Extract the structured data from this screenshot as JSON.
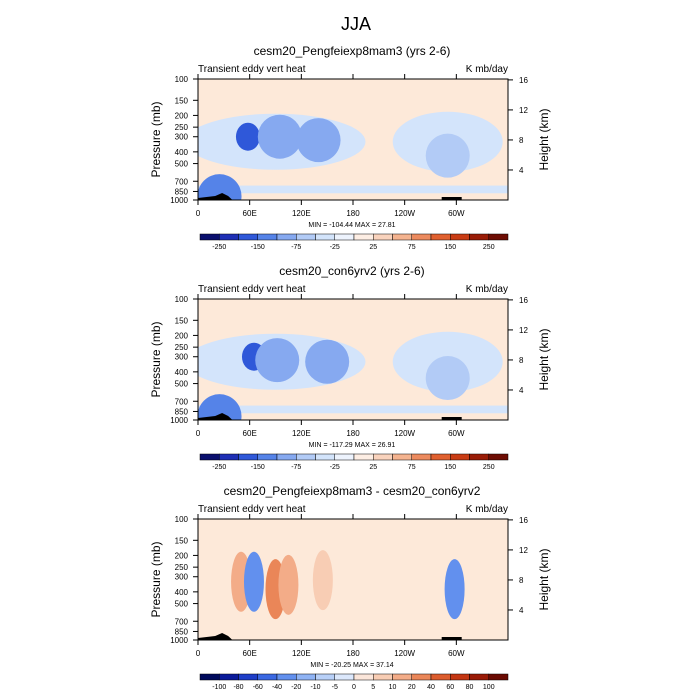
{
  "figure_title": "JJA",
  "chart_data": [
    {
      "type": "heatmap",
      "title": "cesm20_Pengfeiexp8mam3 (yrs 2-6)",
      "left_label": "Transient eddy vert heat",
      "right_label": "K mb/day",
      "xlabel": "",
      "ylabel": "Pressure (mb)",
      "ylabel_right": "Height (km)",
      "x_ticks": [
        "0",
        "60E",
        "120E",
        "180",
        "120W",
        "60W"
      ],
      "y_ticks": [
        "100",
        "150",
        "200",
        "250",
        "300",
        "400",
        "500",
        "700",
        "850",
        "1000"
      ],
      "y2_ticks": [
        "16",
        "12",
        "8",
        "4"
      ],
      "minmax": "MIN = -104.44  MAX =  27.81",
      "colorbar_labels": [
        "-250",
        "-150",
        "-75",
        "-25",
        "25",
        "75",
        "150",
        "250"
      ],
      "xlim": [
        0,
        360
      ],
      "ylim": [
        1000,
        100
      ],
      "features": [
        {
          "lon": 25,
          "p": 930,
          "value": -80
        },
        {
          "lon": 58,
          "p": 300,
          "value": -100
        },
        {
          "lon": 95,
          "p": 300,
          "value": -45
        },
        {
          "lon": 140,
          "p": 320,
          "value": -40
        },
        {
          "lon": 290,
          "p": 430,
          "value": -20
        }
      ]
    },
    {
      "type": "heatmap",
      "title": "cesm20_con6yrv2 (yrs 2-6)",
      "left_label": "Transient eddy vert heat",
      "right_label": "K mb/day",
      "xlabel": "",
      "ylabel": "Pressure (mb)",
      "ylabel_right": "Height (km)",
      "x_ticks": [
        "0",
        "60E",
        "120E",
        "180",
        "120W",
        "60W"
      ],
      "y_ticks": [
        "100",
        "150",
        "200",
        "250",
        "300",
        "400",
        "500",
        "700",
        "850",
        "1000"
      ],
      "y2_ticks": [
        "16",
        "12",
        "8",
        "4"
      ],
      "minmax": "MIN = -117.29  MAX =  26.91",
      "colorbar_labels": [
        "-250",
        "-150",
        "-75",
        "-25",
        "25",
        "75",
        "150",
        "250"
      ],
      "xlim": [
        0,
        360
      ],
      "ylim": [
        1000,
        100
      ],
      "features": [
        {
          "lon": 25,
          "p": 930,
          "value": -80
        },
        {
          "lon": 65,
          "p": 300,
          "value": -115
        },
        {
          "lon": 92,
          "p": 320,
          "value": -45
        },
        {
          "lon": 150,
          "p": 330,
          "value": -35
        },
        {
          "lon": 290,
          "p": 450,
          "value": -20
        }
      ]
    },
    {
      "type": "heatmap",
      "title": "cesm20_Pengfeiexp8mam3 - cesm20_con6yrv2",
      "left_label": "Transient eddy vert heat",
      "right_label": "K mb/day",
      "xlabel": "",
      "ylabel": "Pressure (mb)",
      "ylabel_right": "Height (km)",
      "x_ticks": [
        "0",
        "60E",
        "120E",
        "180",
        "120W",
        "60W"
      ],
      "y_ticks": [
        "100",
        "150",
        "200",
        "250",
        "300",
        "400",
        "500",
        "700",
        "850",
        "1000"
      ],
      "y2_ticks": [
        "16",
        "12",
        "8",
        "4"
      ],
      "minmax": "MIN = -20.25  MAX =  37.14",
      "colorbar_labels": [
        "-100",
        "-80",
        "-60",
        "-40",
        "-20",
        "-10",
        "-5",
        "0",
        "5",
        "10",
        "20",
        "40",
        "60",
        "80",
        "100"
      ],
      "xlim": [
        0,
        360
      ],
      "ylim": [
        1000,
        100
      ],
      "features": [
        {
          "lon": 50,
          "p": 330,
          "value": 20
        },
        {
          "lon": 65,
          "p": 330,
          "value": -20
        },
        {
          "lon": 90,
          "p": 380,
          "value": 37
        },
        {
          "lon": 105,
          "p": 350,
          "value": 15
        },
        {
          "lon": 145,
          "p": 320,
          "value": 10
        },
        {
          "lon": 298,
          "p": 380,
          "value": -20
        }
      ]
    }
  ],
  "colorbar_colors": [
    "#0a0f6e",
    "#1e2fb5",
    "#2f58d9",
    "#5583e8",
    "#86a9f0",
    "#b2cbf6",
    "#d3e4fb",
    "#edf3fd",
    "#fdeee4",
    "#f9d3bd",
    "#f4b38f",
    "#ec8a5e",
    "#e0602f",
    "#c93c14",
    "#9a1c07",
    "#6e0d04"
  ],
  "diff_colorbar_colors": [
    "#000a5c",
    "#0a1a9a",
    "#1e3ec8",
    "#3a68e2",
    "#6290ee",
    "#8fb3f4",
    "#b8d0f8",
    "#dce8fc",
    "#fbe6da",
    "#f8cdb4",
    "#f3ac88",
    "#ea8658",
    "#dc5c2d",
    "#c43612",
    "#9a1a06",
    "#6a0a02"
  ],
  "background_color": "#fde9d9"
}
